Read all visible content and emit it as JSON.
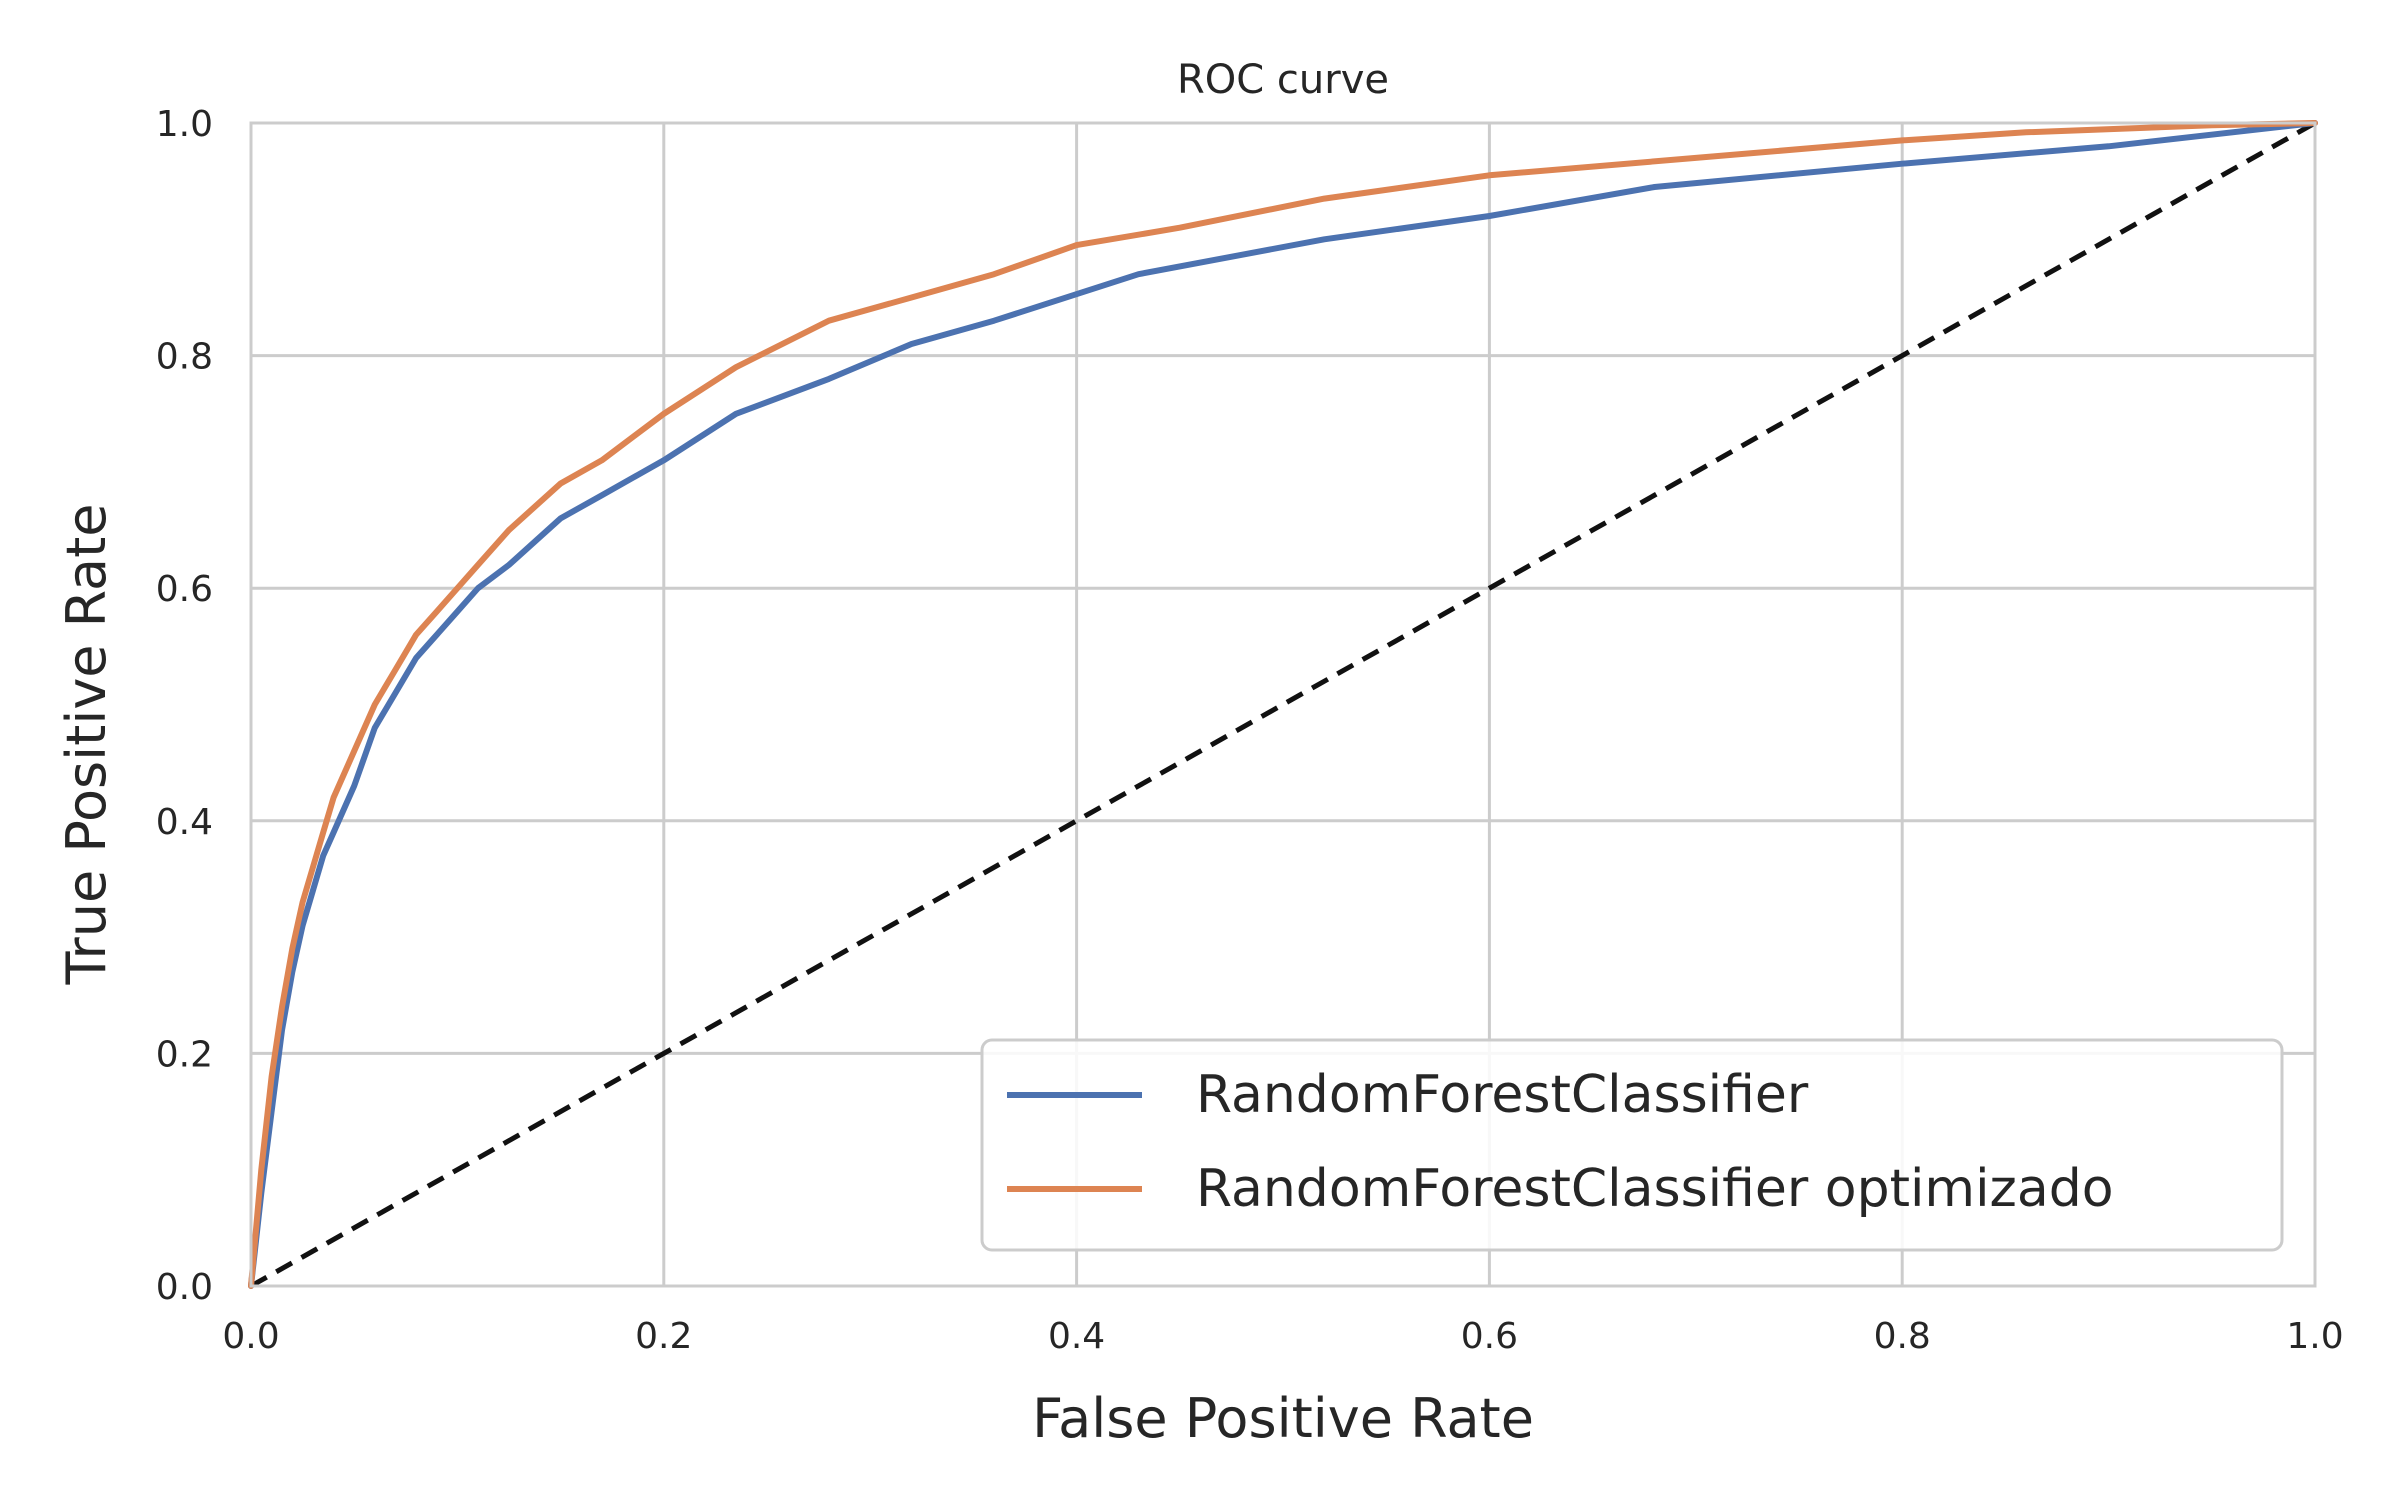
{
  "chart_data": {
    "type": "line",
    "title": "ROC curve",
    "xlabel": "False Positive Rate",
    "ylabel": "True Positive Rate",
    "xlim": [
      0,
      1
    ],
    "ylim": [
      0,
      1
    ],
    "x_ticks": [
      "0.0",
      "0.2",
      "0.4",
      "0.6",
      "0.8",
      "1.0"
    ],
    "y_ticks": [
      "0.0",
      "0.2",
      "0.4",
      "0.6",
      "0.8",
      "1.0"
    ],
    "grid": true,
    "legend_position": "lower-right",
    "series": [
      {
        "name": "RandomForestClassifier",
        "color": "#4c72b0",
        "x": [
          0.0,
          0.005,
          0.01,
          0.015,
          0.02,
          0.025,
          0.03,
          0.035,
          0.04,
          0.05,
          0.06,
          0.07,
          0.08,
          0.09,
          0.1,
          0.11,
          0.125,
          0.15,
          0.17,
          0.2,
          0.235,
          0.28,
          0.32,
          0.36,
          0.43,
          0.52,
          0.6,
          0.68,
          0.8,
          0.9,
          1.0
        ],
        "y": [
          0.0,
          0.08,
          0.15,
          0.22,
          0.27,
          0.31,
          0.34,
          0.37,
          0.39,
          0.43,
          0.48,
          0.51,
          0.54,
          0.56,
          0.58,
          0.6,
          0.62,
          0.66,
          0.68,
          0.71,
          0.75,
          0.78,
          0.81,
          0.83,
          0.87,
          0.9,
          0.92,
          0.945,
          0.965,
          0.98,
          1.0
        ]
      },
      {
        "name": "RandomForestClassifier optimizado",
        "color": "#dd8452",
        "x": [
          0.0,
          0.005,
          0.01,
          0.015,
          0.02,
          0.025,
          0.03,
          0.035,
          0.04,
          0.05,
          0.06,
          0.07,
          0.08,
          0.09,
          0.1,
          0.11,
          0.125,
          0.15,
          0.17,
          0.2,
          0.235,
          0.28,
          0.32,
          0.36,
          0.4,
          0.45,
          0.52,
          0.6,
          0.7,
          0.8,
          0.86,
          0.95,
          1.0
        ],
        "y": [
          0.0,
          0.1,
          0.18,
          0.24,
          0.29,
          0.33,
          0.36,
          0.39,
          0.42,
          0.46,
          0.5,
          0.53,
          0.56,
          0.58,
          0.6,
          0.62,
          0.65,
          0.69,
          0.71,
          0.75,
          0.79,
          0.83,
          0.85,
          0.87,
          0.895,
          0.91,
          0.935,
          0.955,
          0.97,
          0.985,
          0.992,
          0.998,
          1.0
        ]
      }
    ],
    "diagonal": {
      "x": [
        0,
        1
      ],
      "y": [
        0,
        1
      ],
      "color": "#111111",
      "style": "dashed"
    }
  }
}
